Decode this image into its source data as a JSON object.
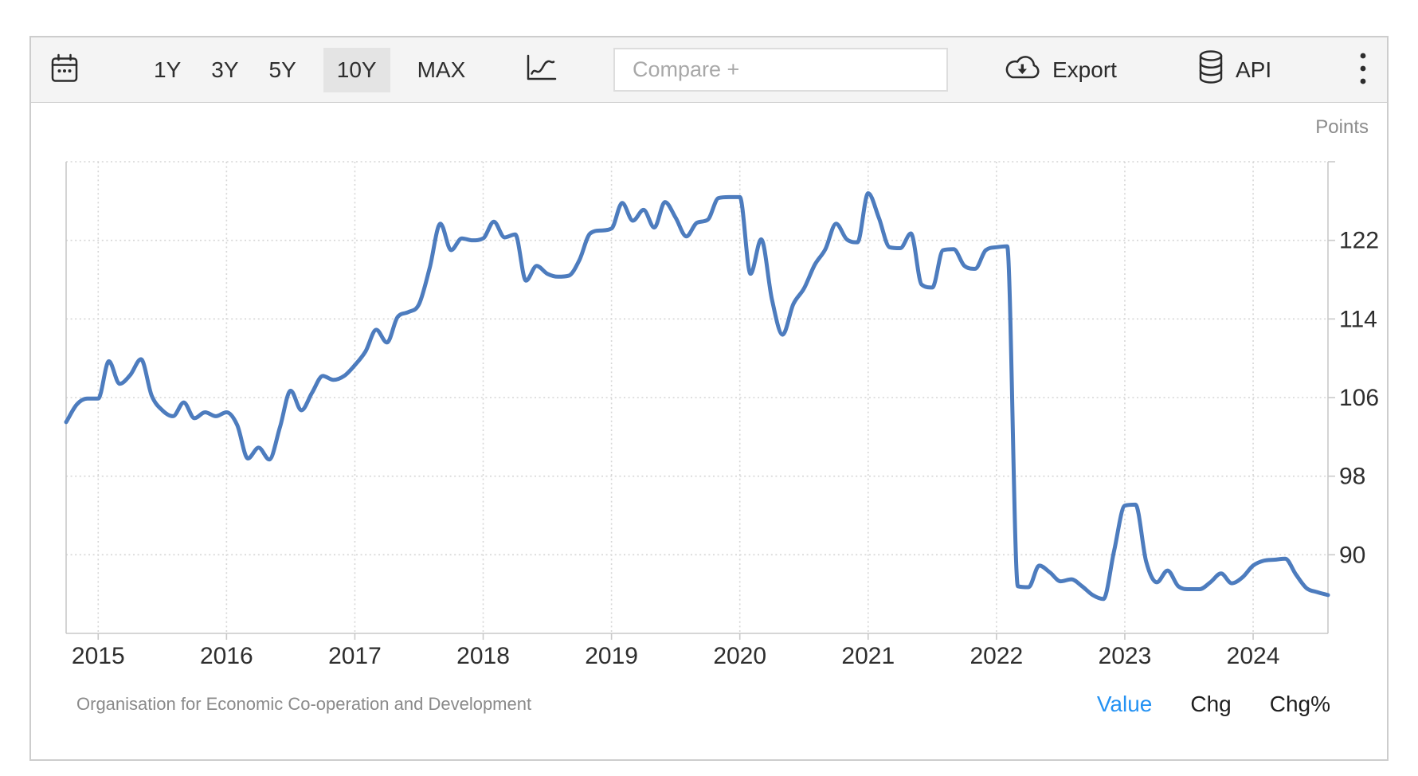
{
  "toolbar": {
    "ranges": [
      {
        "label": "1Y",
        "active": false
      },
      {
        "label": "3Y",
        "active": false
      },
      {
        "label": "5Y",
        "active": false
      },
      {
        "label": "10Y",
        "active": true
      },
      {
        "label": "MAX",
        "active": false
      }
    ],
    "active_range": "10Y",
    "compare_placeholder": "Compare +",
    "export_label": "Export",
    "api_label": "API",
    "icons": [
      "calendar-icon",
      "line-chart-icon",
      "cloud-download-icon",
      "database-icon",
      "kebab-menu-icon"
    ]
  },
  "chart": {
    "unit_label": "Points"
  },
  "footer": {
    "source": "Organisation for Economic Co-operation and Development",
    "links": [
      {
        "label": "Value",
        "active": true
      },
      {
        "label": "Chg",
        "active": false
      },
      {
        "label": "Chg%",
        "active": false
      }
    ]
  },
  "colors": {
    "line": "#4d7cbe",
    "active_link": "#2492f3",
    "grid": "#d6d6d6",
    "axis": "#c9c9c9",
    "axis_text": "#2e2e2e",
    "toolbar_bg": "#f4f4f4",
    "selected_range_bg": "#e4e4e4"
  },
  "chart_data": {
    "type": "line",
    "title": "",
    "xlabel": "",
    "ylabel": "Points",
    "x_labels": [
      "2015",
      "2016",
      "2017",
      "2018",
      "2019",
      "2020",
      "2021",
      "2022",
      "2023",
      "2024"
    ],
    "y_ticks": [
      122,
      114,
      106,
      98,
      90
    ],
    "ylim": [
      82,
      130
    ],
    "x_start": "2014-10",
    "x_end": "2024-08",
    "frequency": "monthly",
    "grid": "dotted",
    "legend": "none",
    "series": [
      {
        "name": "Value",
        "values": [
          103.5,
          105.3,
          105.9,
          105.9,
          109.7,
          107.4,
          108.3,
          109.9,
          106.2,
          104.7,
          104.1,
          105.5,
          103.9,
          104.5,
          104.1,
          104.5,
          103.2,
          99.8,
          100.9,
          99.7,
          103.0,
          106.7,
          104.7,
          106.5,
          108.2,
          107.8,
          108.2,
          109.3,
          110.7,
          112.9,
          111.6,
          114.2,
          114.7,
          115.5,
          119.2,
          123.7,
          121.0,
          122.2,
          122.0,
          122.2,
          123.9,
          122.3,
          122.6,
          117.9,
          119.4,
          118.6,
          118.3,
          118.4,
          120.0,
          122.7,
          123.0,
          123.2,
          125.8,
          124.0,
          125.1,
          123.3,
          125.9,
          124.3,
          122.4,
          123.8,
          124.1,
          126.3,
          126.4,
          126.4,
          118.6,
          122.1,
          116.0,
          112.4,
          115.5,
          117.1,
          119.5,
          121.1,
          123.7,
          122.1,
          121.8,
          126.8,
          124.3,
          121.3,
          121.2,
          122.7,
          117.5,
          117.2,
          121.0,
          121.1,
          119.4,
          119.1,
          121.0,
          121.3,
          121.4,
          86.8,
          86.7,
          88.9,
          88.2,
          87.3,
          87.5,
          86.8,
          85.9,
          85.5,
          90.4,
          95.0,
          95.1,
          89.3,
          87.2,
          88.4,
          86.8,
          86.5,
          86.5,
          87.2,
          88.1,
          87.1,
          87.7,
          88.9,
          89.4,
          89.5,
          89.6,
          88.0,
          86.6,
          86.2,
          85.9
        ]
      }
    ]
  }
}
